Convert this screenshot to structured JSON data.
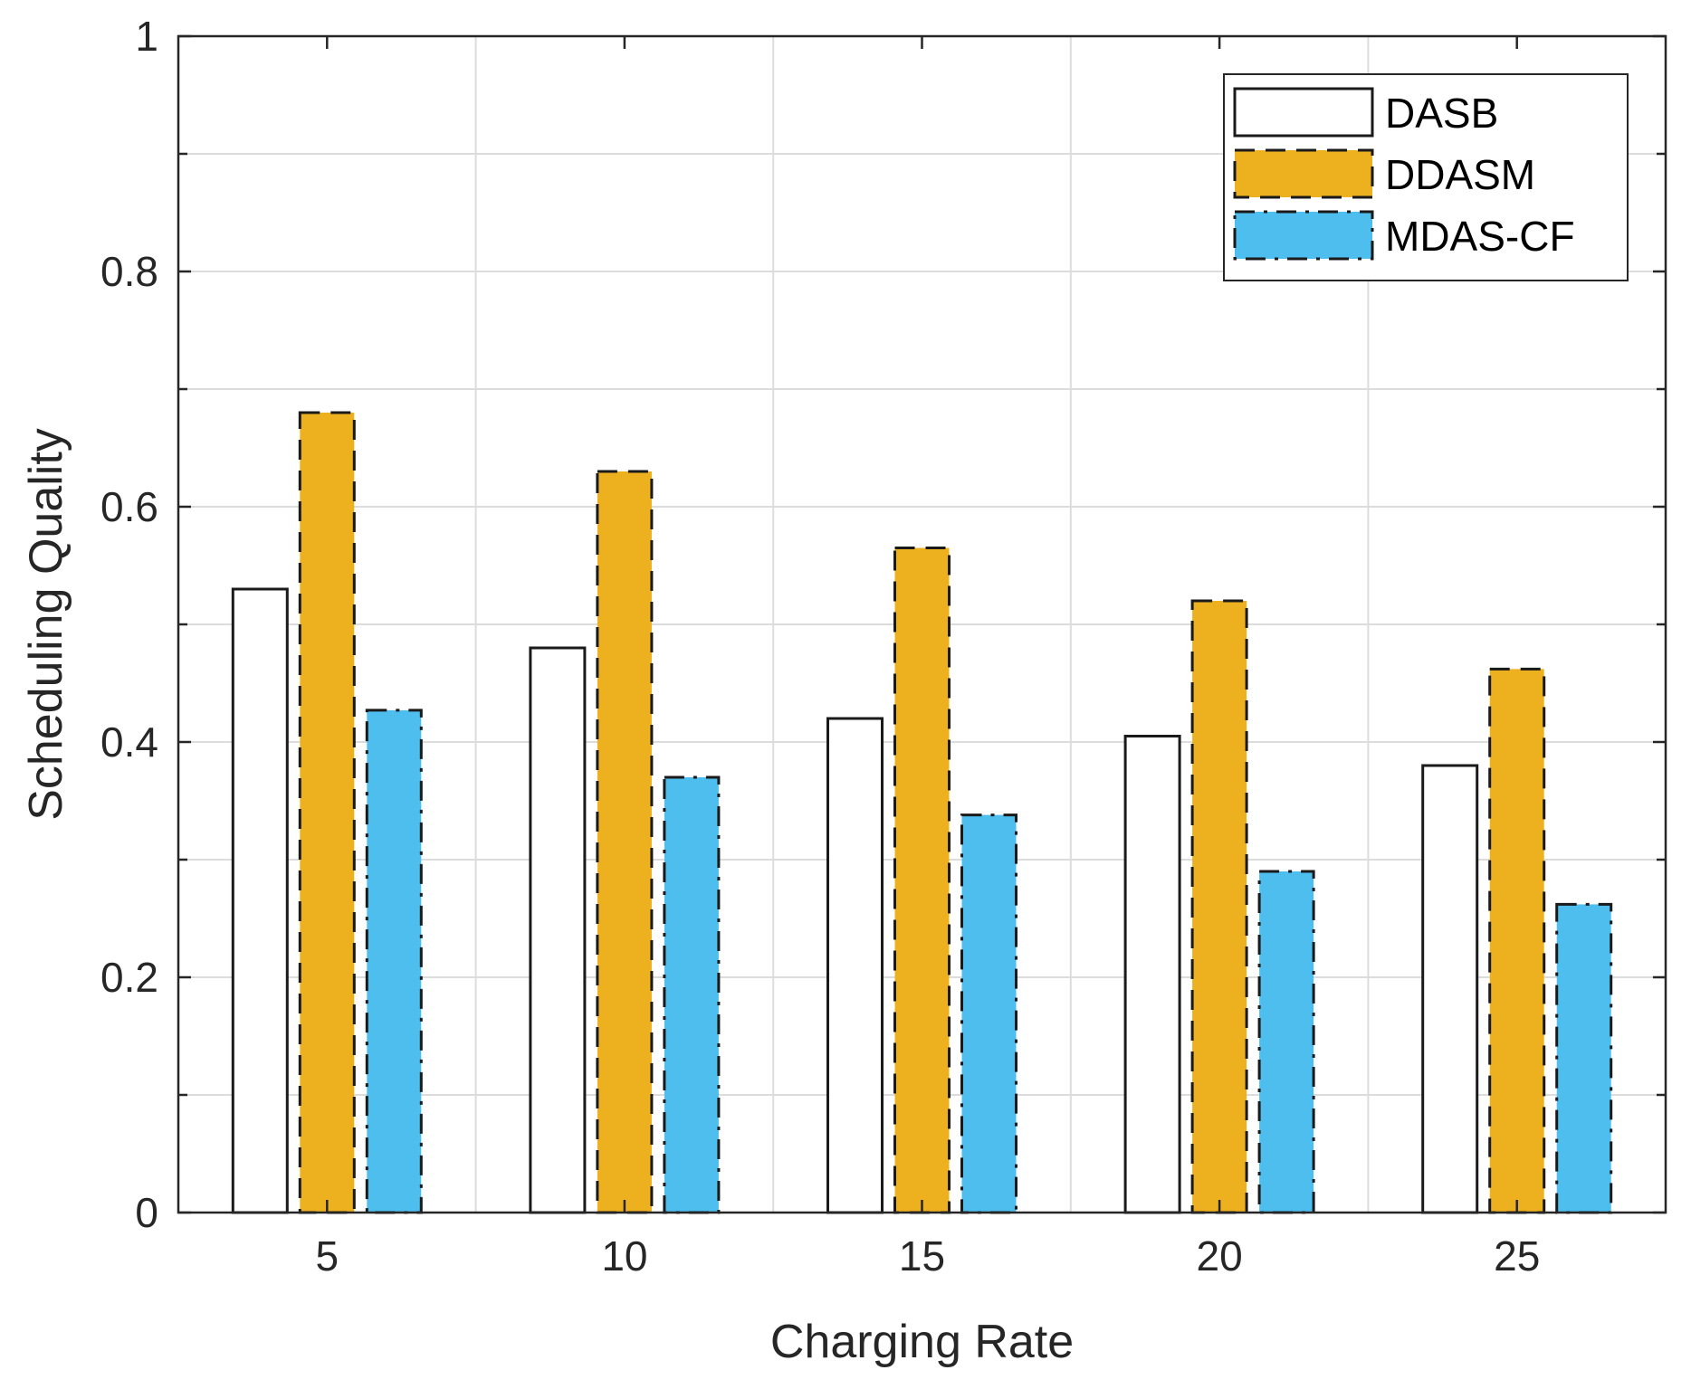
{
  "chart_data": {
    "type": "bar",
    "title": "",
    "xlabel": "Charging Rate",
    "ylabel": "Scheduling Quality",
    "categories": [
      "5",
      "10",
      "15",
      "20",
      "25"
    ],
    "ylim": [
      0,
      1
    ],
    "yticks": [
      0,
      0.2,
      0.4,
      0.6,
      0.8,
      1
    ],
    "ytick_labels": [
      "0",
      "0.2",
      "0.4",
      "0.6",
      "0.8",
      "1"
    ],
    "minor_yticks": [
      0.1,
      0.3,
      0.5,
      0.7,
      0.9
    ],
    "grid": true,
    "legend_position": "top-right",
    "series": [
      {
        "name": "DASB",
        "values": [
          0.53,
          0.48,
          0.42,
          0.405,
          0.38
        ],
        "color": "#ffffff",
        "line_style": "solid"
      },
      {
        "name": "DDASM",
        "values": [
          0.68,
          0.63,
          0.565,
          0.52,
          0.462
        ],
        "color": "#EDB120",
        "line_style": "dashed"
      },
      {
        "name": "MDAS-CF",
        "values": [
          0.427,
          0.37,
          0.338,
          0.29,
          0.262
        ],
        "color": "#4DBEEE",
        "line_style": "dashdot"
      }
    ]
  }
}
